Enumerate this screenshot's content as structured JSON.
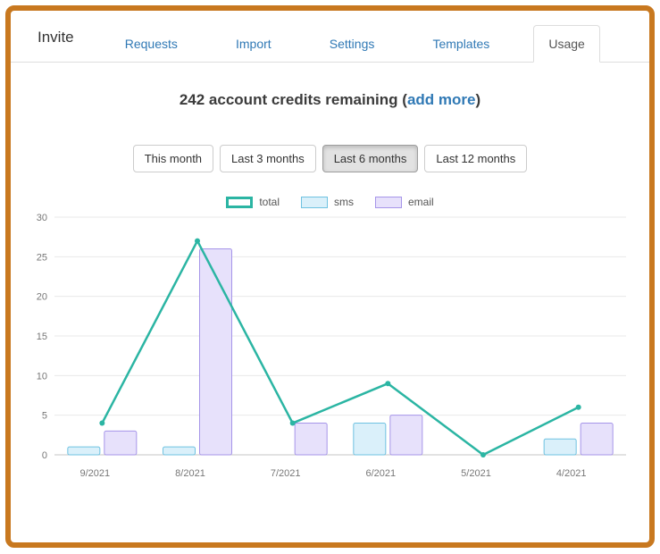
{
  "header": {
    "title": "Invite",
    "tabs": [
      {
        "label": "Requests",
        "active": false
      },
      {
        "label": "Import",
        "active": false
      },
      {
        "label": "Settings",
        "active": false
      },
      {
        "label": "Templates",
        "active": false
      },
      {
        "label": "Usage",
        "active": true
      }
    ]
  },
  "credits": {
    "text_before": "242 account credits remaining (",
    "link_label": "add more",
    "text_after": ")"
  },
  "range_filters": {
    "buttons": [
      {
        "label": "This month",
        "active": false
      },
      {
        "label": "Last 3 months",
        "active": false
      },
      {
        "label": "Last 6 months",
        "active": true
      },
      {
        "label": "Last 12 months",
        "active": false
      }
    ]
  },
  "chart_data": {
    "type": "bar",
    "title": "",
    "xlabel": "",
    "ylabel": "",
    "categories": [
      "9/2021",
      "8/2021",
      "7/2021",
      "6/2021",
      "5/2021",
      "4/2021"
    ],
    "series": [
      {
        "name": "total",
        "type": "line",
        "values": [
          4,
          27,
          4,
          9,
          0,
          6
        ],
        "color": "#2bb5a3"
      },
      {
        "name": "sms",
        "type": "bar",
        "values": [
          1,
          1,
          0,
          4,
          0,
          2
        ],
        "fill": "#daf0fa",
        "border": "#6fc2e1"
      },
      {
        "name": "email",
        "type": "bar",
        "values": [
          3,
          26,
          4,
          5,
          0,
          4
        ],
        "fill": "#e7e1fb",
        "border": "#a695e9"
      }
    ],
    "ylim": [
      0,
      30
    ],
    "yticks": [
      0,
      5,
      10,
      15,
      20,
      25,
      30
    ],
    "grid": true,
    "legend_position": "top"
  },
  "colors": {
    "frame_border": "#c8781f",
    "tab_link": "#3079b5",
    "grid_line": "#e8e8e8",
    "axis_line": "#c4c4c4",
    "axis_text": "#777777",
    "active_button_bg": "#e2e2e2"
  }
}
